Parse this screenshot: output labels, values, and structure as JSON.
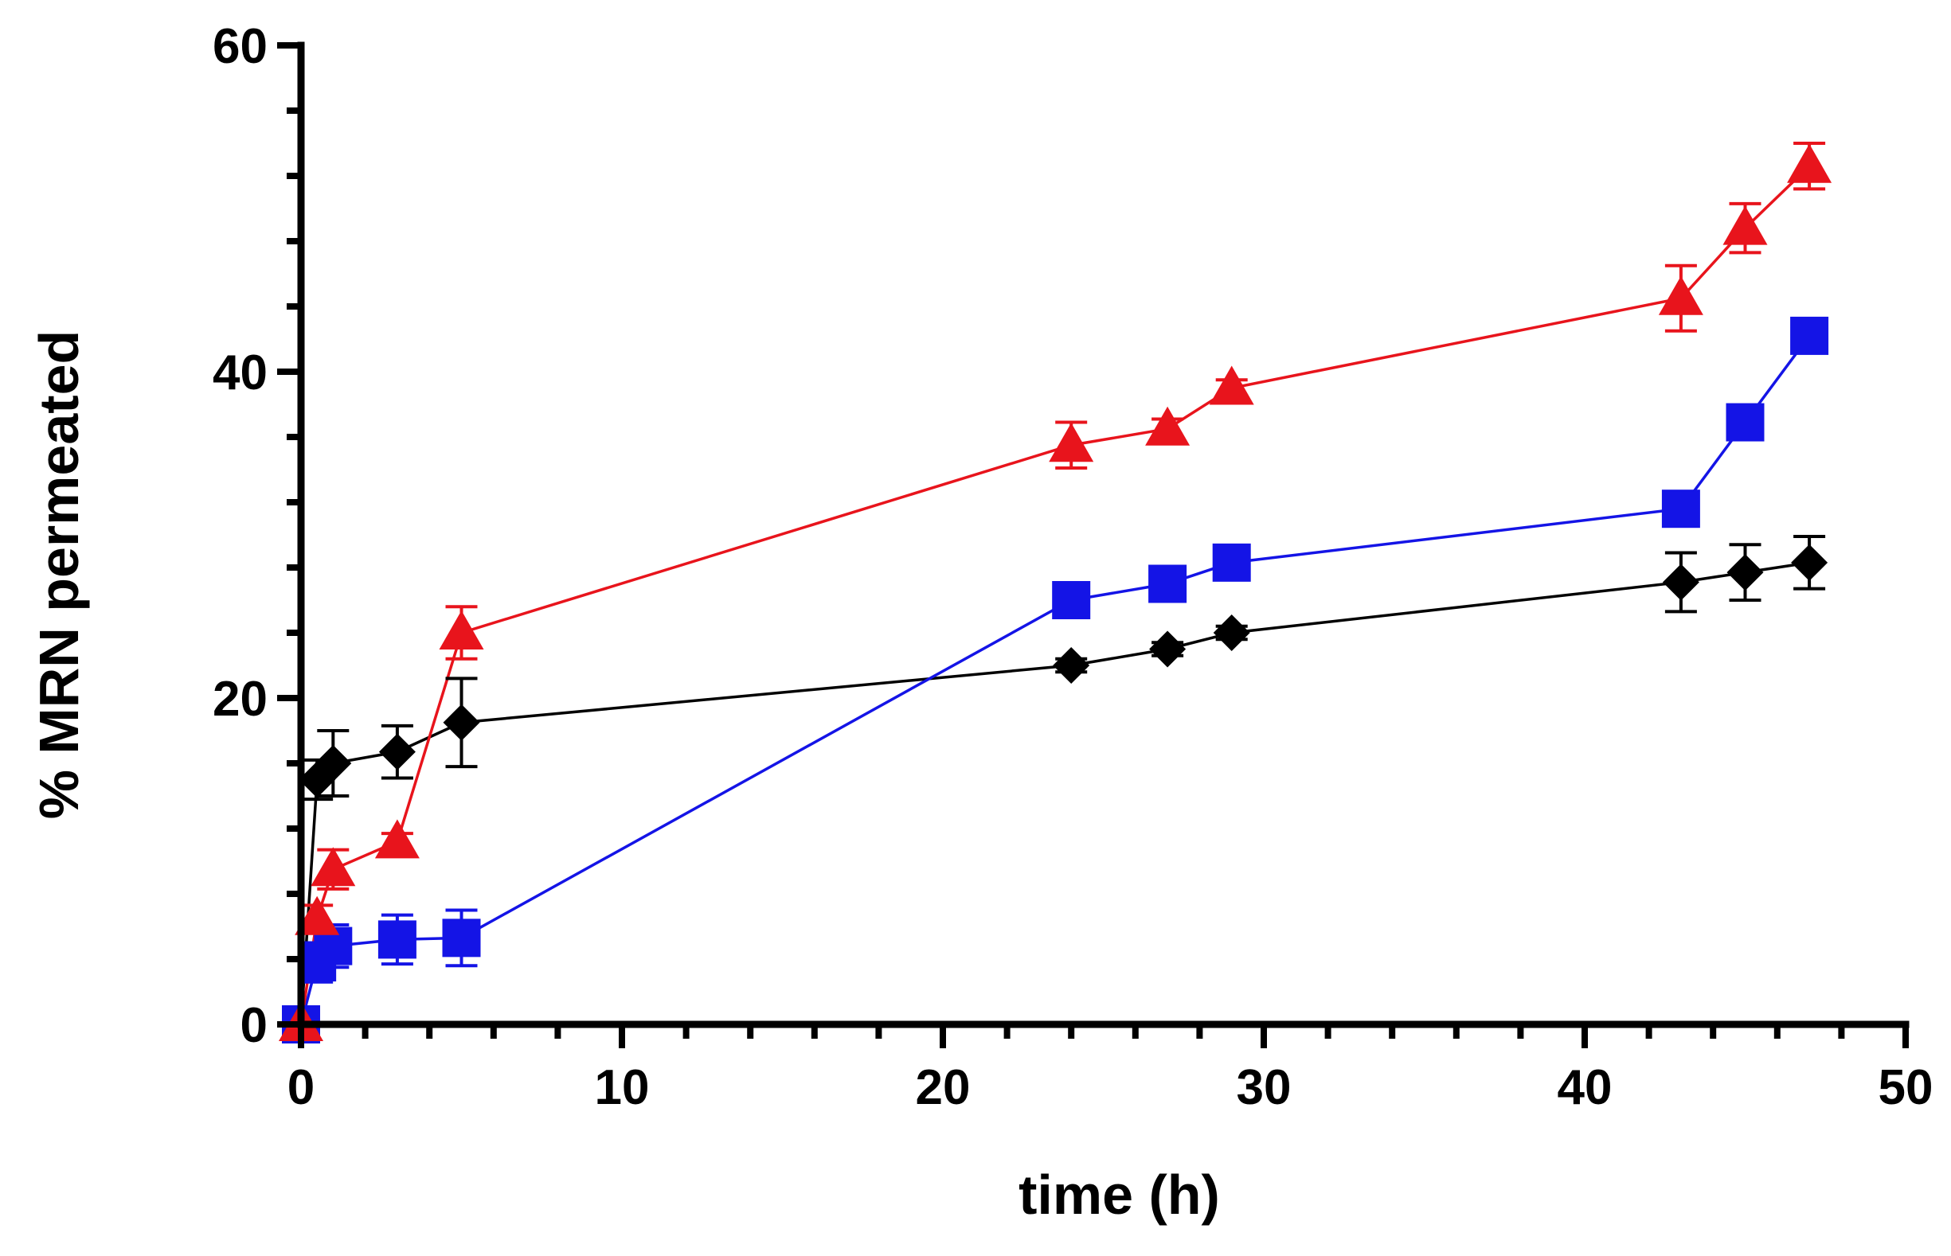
{
  "chart_data": {
    "type": "scatter",
    "xlabel": "time (h)",
    "ylabel": "% MRN permeated",
    "xlim": [
      0,
      50
    ],
    "ylim": [
      0,
      60
    ],
    "x_ticks": [
      0,
      10,
      20,
      30,
      40,
      50
    ],
    "y_ticks": [
      0,
      20,
      40,
      60
    ],
    "x_minor_step": 2,
    "y_minor_step": 4,
    "grid": false,
    "legend": "none",
    "lines_connect_points": true,
    "error_bars": true,
    "series": [
      {
        "marker": "triangle",
        "color": "#e8141c",
        "x": [
          0,
          0.5,
          1,
          3,
          5,
          24,
          27,
          29,
          43,
          45,
          47
        ],
        "y": [
          0,
          6.5,
          9.5,
          11.2,
          24,
          35.5,
          36.5,
          39,
          44.5,
          48.8,
          52.6
        ],
        "err": [
          0.3,
          0.8,
          1.2,
          0.5,
          1.6,
          1.4,
          0.6,
          0.5,
          2.0,
          1.5,
          1.4
        ]
      },
      {
        "marker": "square",
        "color": "#1414e6",
        "x": [
          0,
          0.5,
          1,
          3,
          5,
          24,
          27,
          29,
          43,
          45,
          47
        ],
        "y": [
          0,
          3.8,
          4.8,
          5.2,
          5.3,
          26,
          27,
          28.3,
          31.6,
          36.9,
          42.2
        ],
        "err": [
          0.3,
          1.2,
          1.3,
          1.5,
          1.7,
          0.5,
          0.5,
          0.6,
          0.6,
          0.6,
          0.5
        ]
      },
      {
        "marker": "diamond",
        "color": "#000000",
        "x": [
          0,
          0.5,
          1,
          3,
          5,
          24,
          27,
          29,
          43,
          45,
          47
        ],
        "y": [
          0,
          15,
          16,
          16.7,
          18.5,
          22,
          23,
          24,
          27.1,
          27.7,
          28.3
        ],
        "err": [
          0.3,
          1.2,
          2.0,
          1.6,
          2.7,
          0.4,
          0.4,
          0.4,
          1.8,
          1.7,
          1.6
        ]
      }
    ]
  }
}
